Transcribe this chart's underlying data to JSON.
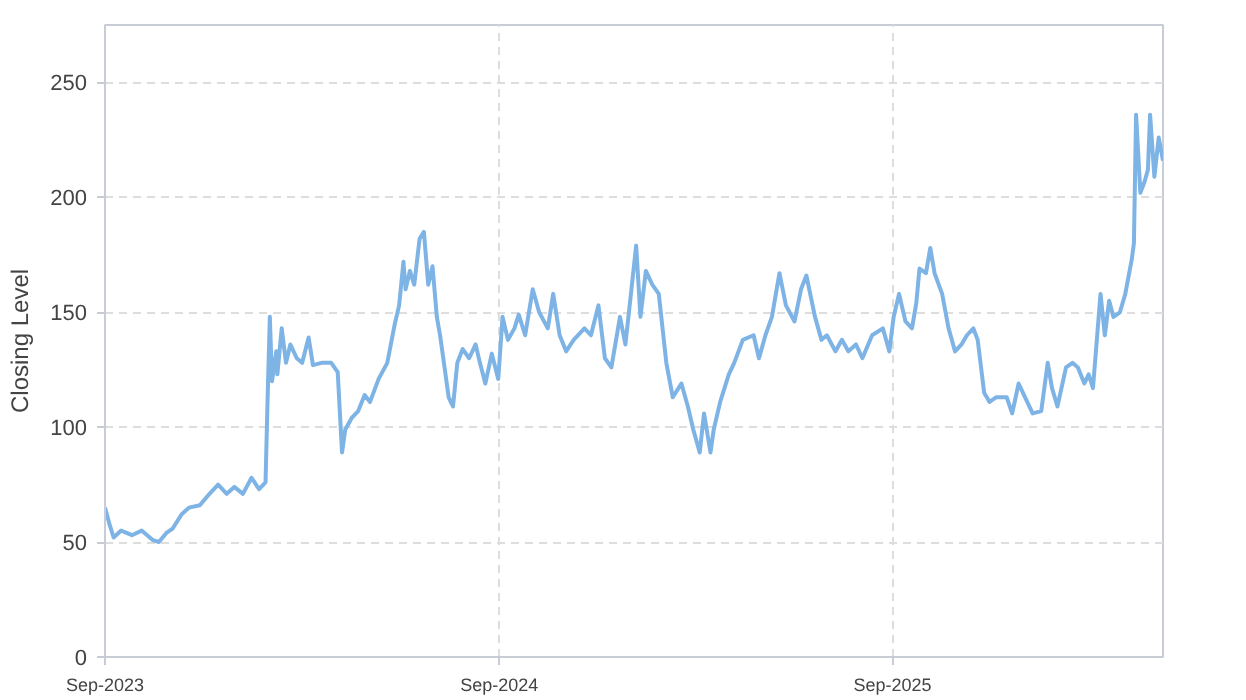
{
  "chart_data": {
    "type": "line",
    "ylabel": "Closing Level",
    "x": [
      "2023-09-01",
      "2023-09-05",
      "2023-09-09",
      "2023-09-16",
      "2023-09-26",
      "2023-10-05",
      "2023-10-15",
      "2023-10-21",
      "2023-10-28",
      "2023-11-03",
      "2023-11-11",
      "2023-11-18",
      "2023-11-28",
      "2023-12-07",
      "2023-12-15",
      "2023-12-23",
      "2023-12-30",
      "2024-01-07",
      "2024-01-15",
      "2024-01-22",
      "2024-01-28",
      "2024-01-30",
      "2024-02-01",
      "2024-02-03",
      "2024-02-07",
      "2024-02-08",
      "2024-02-12",
      "2024-02-16",
      "2024-02-20",
      "2024-02-26",
      "2024-03-02",
      "2024-03-08",
      "2024-03-12",
      "2024-03-20",
      "2024-03-29",
      "2024-04-04",
      "2024-04-08",
      "2024-04-11",
      "2024-04-17",
      "2024-04-23",
      "2024-04-29",
      "2024-05-04",
      "2024-05-12",
      "2024-05-20",
      "2024-05-27",
      "2024-05-31",
      "2024-06-04",
      "2024-06-06",
      "2024-06-10",
      "2024-06-14",
      "2024-06-19",
      "2024-06-23",
      "2024-06-27",
      "2024-07-01",
      "2024-07-05",
      "2024-07-08",
      "2024-07-16",
      "2024-07-20",
      "2024-07-24",
      "2024-07-29",
      "2024-08-04",
      "2024-08-10",
      "2024-08-14",
      "2024-08-19",
      "2024-08-25",
      "2024-08-31",
      "2024-09-04",
      "2024-09-09",
      "2024-09-15",
      "2024-09-19",
      "2024-09-25",
      "2024-10-02",
      "2024-10-08",
      "2024-10-16",
      "2024-10-21",
      "2024-10-27",
      "2024-11-02",
      "2024-11-09",
      "2024-11-19",
      "2024-11-25",
      "2024-12-02",
      "2024-12-08",
      "2024-12-14",
      "2024-12-22",
      "2024-12-27",
      "2024-12-31",
      "2025-01-06",
      "2025-01-10",
      "2025-01-15",
      "2025-01-21",
      "2025-01-27",
      "2025-02-03",
      "2025-02-09",
      "2025-02-17",
      "2025-02-23",
      "2025-02-28",
      "2025-03-06",
      "2025-03-10",
      "2025-03-16",
      "2025-03-19",
      "2025-03-25",
      "2025-04-02",
      "2025-04-07",
      "2025-04-15",
      "2025-04-25",
      "2025-04-30",
      "2025-05-06",
      "2025-05-12",
      "2025-05-19",
      "2025-05-25",
      "2025-06-02",
      "2025-06-08",
      "2025-06-13",
      "2025-06-21",
      "2025-06-27",
      "2025-07-02",
      "2025-07-10",
      "2025-07-16",
      "2025-07-22",
      "2025-07-29",
      "2025-08-04",
      "2025-08-13",
      "2025-08-23",
      "2025-08-29",
      "2025-09-02",
      "2025-09-07",
      "2025-09-13",
      "2025-09-19",
      "2025-09-23",
      "2025-09-26",
      "2025-10-02",
      "2025-10-06",
      "2025-10-10",
      "2025-10-17",
      "2025-10-23",
      "2025-10-29",
      "2025-11-04",
      "2025-11-09",
      "2025-11-15",
      "2025-11-19",
      "2025-11-25",
      "2025-11-30",
      "2025-12-06",
      "2025-12-16",
      "2025-12-21",
      "2025-12-27",
      "2026-01-02",
      "2026-01-09",
      "2026-01-17",
      "2026-01-23",
      "2026-01-27",
      "2026-02-01",
      "2026-02-09",
      "2026-02-15",
      "2026-02-20",
      "2026-02-26",
      "2026-03-02",
      "2026-03-06",
      "2026-03-13",
      "2026-03-17",
      "2026-03-21",
      "2026-03-25",
      "2026-03-31",
      "2026-04-05",
      "2026-04-11",
      "2026-04-13",
      "2026-04-15",
      "2026-04-19",
      "2026-04-23",
      "2026-04-26",
      "2026-04-28",
      "2026-05-02",
      "2026-05-06",
      "2026-05-10"
    ],
    "series": [
      {
        "color": "#7eb3e5",
        "values": [
          65,
          58,
          52,
          55,
          53,
          55,
          51,
          50,
          54,
          56,
          62,
          65,
          66,
          71,
          75,
          71,
          74,
          71,
          78,
          73,
          76,
          114,
          148,
          120,
          133,
          123,
          143,
          128,
          136,
          130,
          128,
          139,
          127,
          128,
          128,
          124,
          89,
          99,
          104,
          107,
          114,
          111,
          121,
          128,
          145,
          153,
          172,
          160,
          168,
          162,
          182,
          185,
          162,
          170,
          148,
          140,
          113,
          109,
          128,
          134,
          130,
          136,
          128,
          119,
          132,
          121,
          148,
          138,
          143,
          149,
          140,
          160,
          150,
          143,
          158,
          140,
          133,
          138,
          143,
          140,
          153,
          130,
          126,
          148,
          136,
          153,
          179,
          148,
          168,
          162,
          158,
          128,
          113,
          119,
          109,
          99,
          89,
          106,
          89,
          99,
          111,
          123,
          128,
          138,
          140,
          130,
          140,
          148,
          167,
          153,
          146,
          160,
          166,
          148,
          138,
          140,
          133,
          138,
          133,
          136,
          130,
          140,
          143,
          133,
          148,
          158,
          146,
          143,
          154,
          169,
          167,
          178,
          167,
          158,
          143,
          133,
          136,
          140,
          143,
          138,
          115,
          111,
          113,
          113,
          106,
          119,
          113,
          106,
          107,
          128,
          117,
          109,
          126,
          128,
          126,
          119,
          123,
          117,
          158,
          140,
          155,
          148,
          150,
          158,
          173,
          180,
          236,
          202,
          207,
          212,
          236,
          209,
          226,
          216
        ]
      }
    ],
    "xlim": [
      "2023-09-01",
      "2026-05-10"
    ],
    "xticks": [
      {
        "value": "2023-09-01",
        "label": "Sep-2023"
      },
      {
        "value": "2024-09-01",
        "label": "Sep-2024"
      },
      {
        "value": "2025-09-01",
        "label": "Sep-2025"
      }
    ],
    "ylim": [
      0,
      275
    ],
    "yticks": [
      0,
      50,
      100,
      150,
      200,
      250
    ],
    "grid": true,
    "marker": "none",
    "line_style": "solid"
  }
}
